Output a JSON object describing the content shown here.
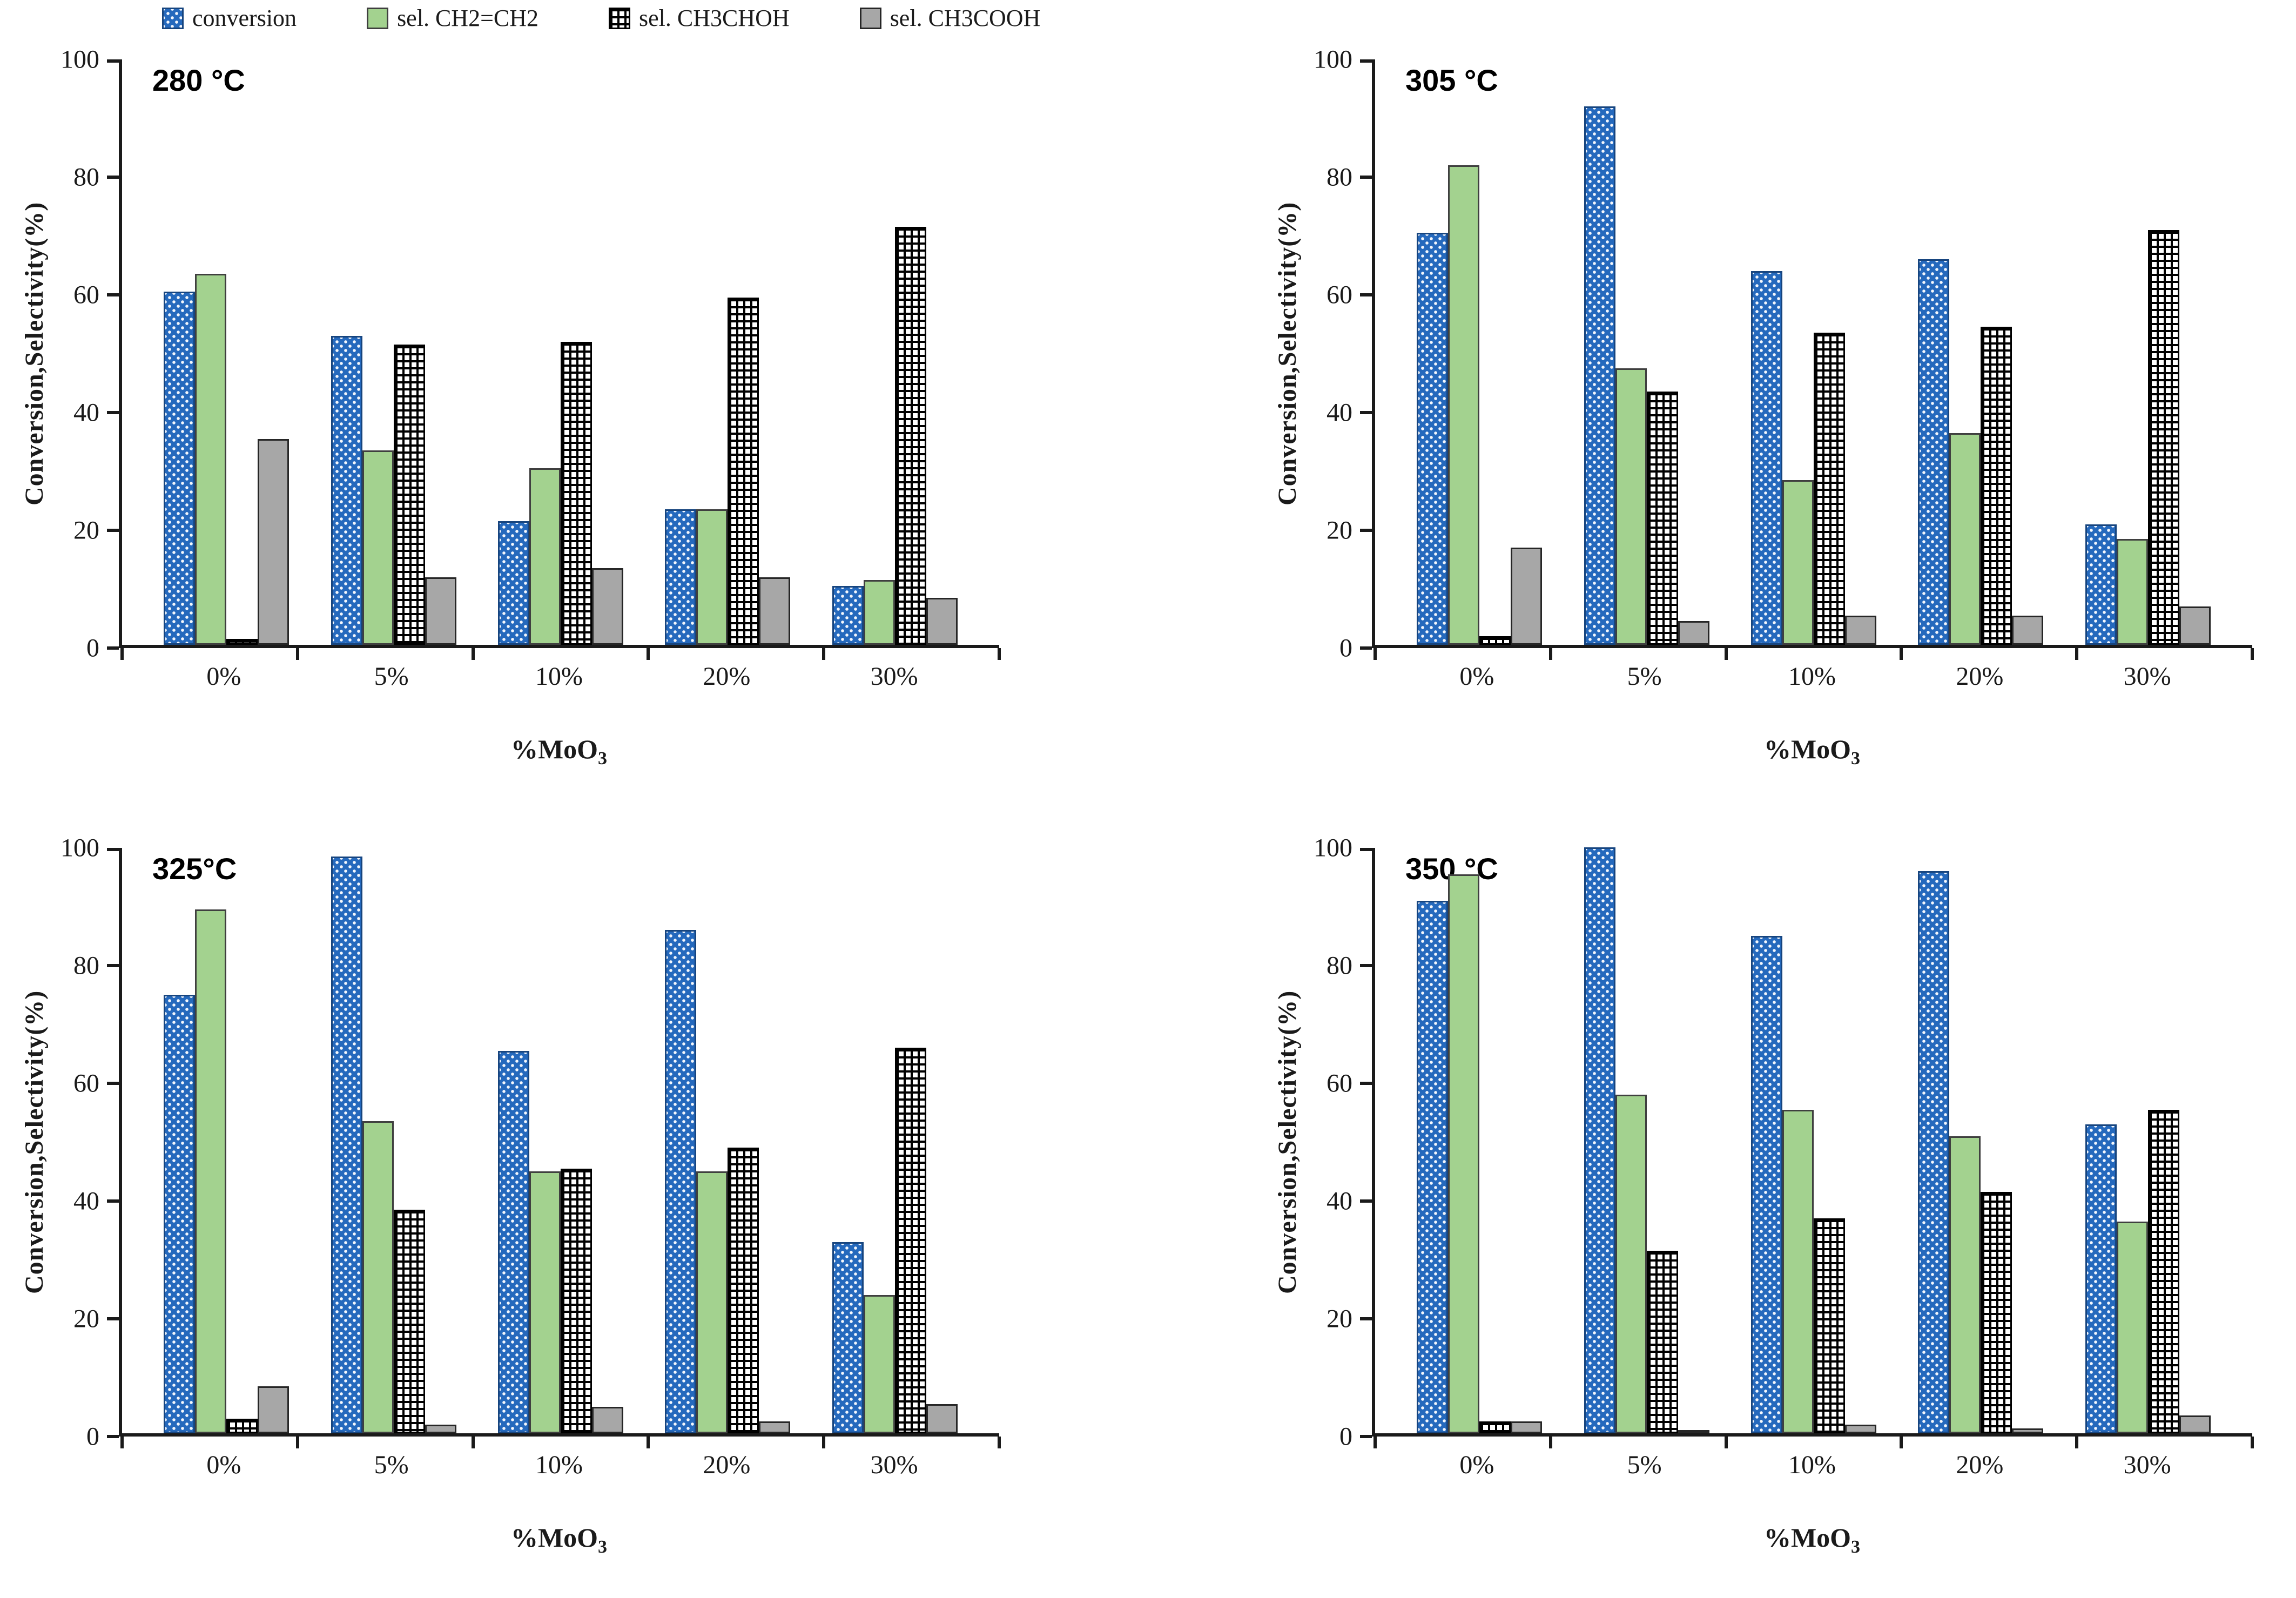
{
  "legend": {
    "items": [
      {
        "label": "conversion"
      },
      {
        "label": "sel. CH2=CH2"
      },
      {
        "label": "sel. CH3CHOH"
      },
      {
        "label": "sel. CH3COOH"
      }
    ]
  },
  "series_keys": [
    "conversion",
    "ch2ch2",
    "ch3choh",
    "ch3cooh"
  ],
  "axes": {
    "ylabel": "Conversion,Selectivity(%)",
    "xlabel": "%MoO3",
    "xlabel_base": "%MoO",
    "xlabel_sub": "3",
    "yticks": [
      0,
      20,
      40,
      60,
      80,
      100
    ],
    "ylim": [
      0,
      100
    ],
    "categories": [
      "0%",
      "5%",
      "10%",
      "20%",
      "30%"
    ]
  },
  "colors": {
    "conversion_fill": "#2569BD",
    "conversion_border": "#17457F",
    "ch2ch2_fill": "#A3D28F",
    "ch3choh_fill": "#FFFFFF",
    "ch3choh_grid": "#000000",
    "ch3cooh_fill": "#A7A7A7",
    "axis": "#1A1A1A"
  },
  "chart_data": [
    {
      "type": "bar",
      "title": "280 °C",
      "categories": [
        "0%",
        "5%",
        "10%",
        "20%",
        "30%"
      ],
      "series": [
        {
          "name": "conversion",
          "values": [
            60,
            52.5,
            21,
            23,
            10
          ]
        },
        {
          "name": "sel. CH2=CH2",
          "values": [
            63,
            33,
            30,
            23,
            11
          ]
        },
        {
          "name": "sel. CH3CHOH",
          "values": [
            1,
            51,
            51.5,
            59,
            71
          ]
        },
        {
          "name": "sel. CH3COOH",
          "values": [
            35,
            11.5,
            13,
            11.5,
            8
          ]
        }
      ],
      "xlabel": "%MoO3",
      "ylabel": "Conversion,Selectivity(%)",
      "ylim": [
        0,
        100
      ],
      "grid": false,
      "legend_position": "above-top-left"
    },
    {
      "type": "bar",
      "title": "305 °C",
      "categories": [
        "0%",
        "5%",
        "10%",
        "20%",
        "30%"
      ],
      "series": [
        {
          "name": "conversion",
          "values": [
            70,
            91.5,
            63.5,
            65.5,
            20.5
          ]
        },
        {
          "name": "sel. CH2=CH2",
          "values": [
            81.5,
            47,
            28,
            36,
            18
          ]
        },
        {
          "name": "sel. CH3CHOH",
          "values": [
            1.5,
            43,
            53,
            54,
            70.5
          ]
        },
        {
          "name": "sel. CH3COOH",
          "values": [
            16.5,
            4,
            5,
            5,
            6.5
          ]
        }
      ],
      "xlabel": "%MoO3",
      "ylabel": "Conversion,Selectivity(%)",
      "ylim": [
        0,
        100
      ],
      "grid": false,
      "legend_position": "none"
    },
    {
      "type": "bar",
      "title": "325°C",
      "categories": [
        "0%",
        "5%",
        "10%",
        "20%",
        "30%"
      ],
      "series": [
        {
          "name": "conversion",
          "values": [
            74.5,
            98,
            65,
            85.5,
            32.5
          ]
        },
        {
          "name": "sel. CH2=CH2",
          "values": [
            89,
            53,
            44.5,
            44.5,
            23.5
          ]
        },
        {
          "name": "sel. CH3CHOH",
          "values": [
            2.5,
            38,
            45,
            48.5,
            65.5
          ]
        },
        {
          "name": "sel. CH3COOH",
          "values": [
            8,
            1.5,
            4.5,
            2,
            5
          ]
        }
      ],
      "xlabel": "%MoO3",
      "ylabel": "Conversion,Selectivity(%)",
      "ylim": [
        0,
        100
      ],
      "grid": false,
      "legend_position": "none"
    },
    {
      "type": "bar",
      "title": "350 °C",
      "categories": [
        "0%",
        "5%",
        "10%",
        "20%",
        "30%"
      ],
      "series": [
        {
          "name": "conversion",
          "values": [
            90.5,
            99.5,
            84.5,
            95.5,
            52.5
          ]
        },
        {
          "name": "sel. CH2=CH2",
          "values": [
            95,
            57.5,
            55,
            50.5,
            36
          ]
        },
        {
          "name": "sel. CH3CHOH",
          "values": [
            2,
            31,
            36.5,
            41,
            55
          ]
        },
        {
          "name": "sel. CH3COOH",
          "values": [
            2,
            0.5,
            1.5,
            0.8,
            3
          ]
        }
      ],
      "xlabel": "%MoO3",
      "ylabel": "Conversion,Selectivity(%)",
      "ylim": [
        0,
        100
      ],
      "grid": false,
      "legend_position": "none"
    }
  ]
}
